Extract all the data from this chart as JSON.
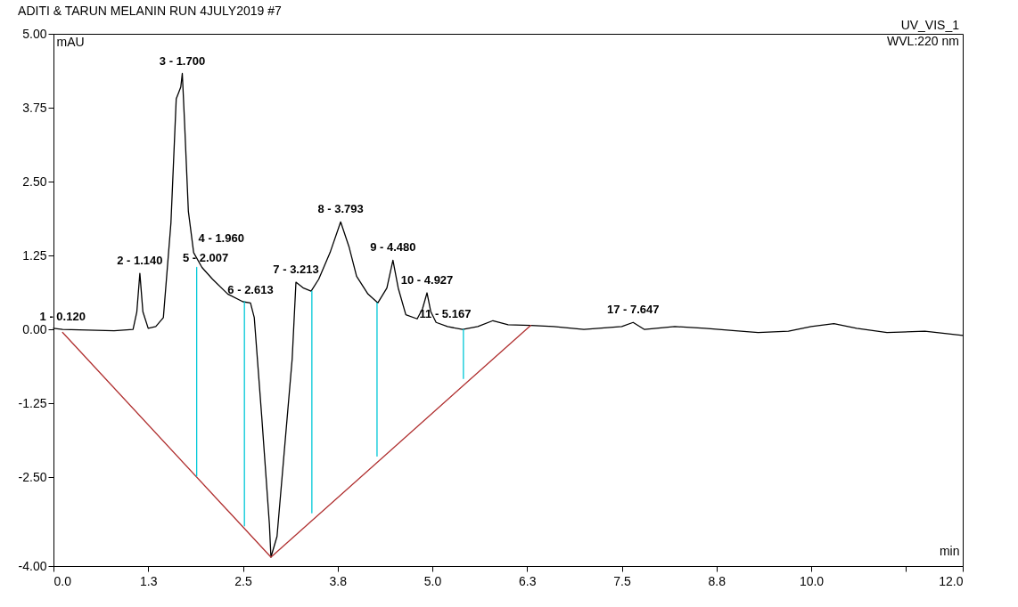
{
  "chart_data": {
    "type": "line",
    "title": "ADITI & TARUN MELANIN RUN 4JULY2019 #7",
    "xlabel": "min",
    "ylabel": "mAU",
    "xlim": [
      0,
      12
    ],
    "ylim": [
      -4,
      5
    ],
    "xticks": [
      {
        "value": 0,
        "label": "0.0"
      },
      {
        "value": 1.25,
        "label": "1.3"
      },
      {
        "value": 2.5,
        "label": "2.5"
      },
      {
        "value": 3.75,
        "label": "3.8"
      },
      {
        "value": 5,
        "label": "5.0"
      },
      {
        "value": 6.25,
        "label": "6.3"
      },
      {
        "value": 7.5,
        "label": "7.5"
      },
      {
        "value": 8.75,
        "label": "8.8"
      },
      {
        "value": 10,
        "label": "10.0"
      },
      {
        "value": 11.25,
        "label": null
      },
      {
        "value": 12,
        "label": "12.0"
      }
    ],
    "yticks": [
      {
        "value": -4,
        "label": "-4.00"
      },
      {
        "value": -2.5,
        "label": "-2.50"
      },
      {
        "value": -1.25,
        "label": "-1.25"
      },
      {
        "value": 0,
        "label": "0.00"
      },
      {
        "value": 1.25,
        "label": "1.25"
      },
      {
        "value": 2.5,
        "label": "2.50"
      },
      {
        "value": 3.75,
        "label": "3.75"
      },
      {
        "value": 5,
        "label": "5.00"
      }
    ],
    "grid": false,
    "legend": false,
    "marker": "none",
    "line_style": "solid",
    "series": [
      {
        "color": "#000000",
        "x": [
          0,
          0.12,
          0.8,
          1.05,
          1.1,
          1.14,
          1.18,
          1.25,
          1.35,
          1.45,
          1.55,
          1.62,
          1.65,
          1.68,
          1.7,
          1.73,
          1.78,
          1.85,
          1.96,
          2.1,
          2.3,
          2.5,
          2.6,
          2.65,
          2.75,
          2.85,
          2.87,
          2.95,
          3.05,
          3.15,
          3.2,
          3.3,
          3.4,
          3.5,
          3.65,
          3.79,
          3.9,
          4.0,
          4.15,
          4.28,
          4.4,
          4.48,
          4.55,
          4.65,
          4.8,
          4.87,
          4.93,
          4.98,
          5.05,
          5.2,
          5.4,
          5.6,
          5.8,
          6.0,
          6.3,
          6.6,
          7.0,
          7.5,
          7.65,
          7.8,
          8.2,
          8.6,
          9.0,
          9.3,
          9.7,
          10.0,
          10.3,
          10.6,
          11.0,
          11.5,
          12.0
        ],
        "values": [
          0.02,
          0.0,
          -0.02,
          0.0,
          0.3,
          0.95,
          0.3,
          0.02,
          0.05,
          0.2,
          1.8,
          3.9,
          4.0,
          4.1,
          4.33,
          3.5,
          2.0,
          1.3,
          1.05,
          0.85,
          0.6,
          0.47,
          0.45,
          0.2,
          -1.5,
          -3.3,
          -3.85,
          -3.5,
          -2.0,
          -0.5,
          0.8,
          0.7,
          0.65,
          0.85,
          1.3,
          1.82,
          1.4,
          0.9,
          0.6,
          0.45,
          0.7,
          1.17,
          0.7,
          0.25,
          0.18,
          0.35,
          0.62,
          0.3,
          0.12,
          0.05,
          0.0,
          0.05,
          0.15,
          0.08,
          0.07,
          0.05,
          0.0,
          0.05,
          0.12,
          0.0,
          0.05,
          0.02,
          -0.02,
          -0.05,
          -0.03,
          0.05,
          0.1,
          0.02,
          -0.05,
          -0.03,
          -0.1
        ]
      },
      {
        "color": "#b03030",
        "x": [
          0.12,
          2.87,
          6.3
        ],
        "values": [
          -0.05,
          -3.85,
          0.07
        ]
      },
      {
        "color": "#00c8d8",
        "x": [
          1.89,
          1.89
        ],
        "values": [
          -2.48,
          1.05
        ]
      },
      {
        "color": "#00c8d8",
        "x": [
          2.52,
          2.52
        ],
        "values": [
          -3.32,
          0.47
        ]
      },
      {
        "color": "#00c8d8",
        "x": [
          3.41,
          3.41
        ],
        "values": [
          -3.1,
          0.65
        ]
      },
      {
        "color": "#00c8d8",
        "x": [
          4.27,
          4.27
        ],
        "values": [
          -2.14,
          0.45
        ]
      },
      {
        "color": "#00c8d8",
        "x": [
          5.41,
          5.41
        ],
        "values": [
          -0.83,
          0.0
        ]
      }
    ],
    "annotations": [
      "UV_VIS_1",
      "WVL:220 nm",
      {
        "text": "1 - 0.120",
        "x": 0.12,
        "y": 0.0
      },
      {
        "text": "2 - 1.140",
        "x": 1.14,
        "y": 0.95
      },
      {
        "text": "3 - 1.700",
        "x": 1.7,
        "y": 4.33
      },
      {
        "text": "4 - 1.960",
        "x": 1.96,
        "y": 1.05
      },
      {
        "text": "5 - 2.007",
        "x": 2.007,
        "y": 1.0
      },
      {
        "text": "6 - 2.613",
        "x": 2.6,
        "y": 0.45
      },
      {
        "text": "7 - 3.213",
        "x": 3.2,
        "y": 0.8
      },
      {
        "text": "8 - 3.793",
        "x": 3.79,
        "y": 1.82
      },
      {
        "text": "9 - 4.480",
        "x": 4.48,
        "y": 1.17
      },
      {
        "text": "10 - 4.927",
        "x": 4.93,
        "y": 0.62
      },
      {
        "text": "11 - 5.167",
        "x": 5.17,
        "y": 0.05
      },
      {
        "text": "17 - 7.647",
        "x": 7.65,
        "y": 0.12
      }
    ]
  }
}
